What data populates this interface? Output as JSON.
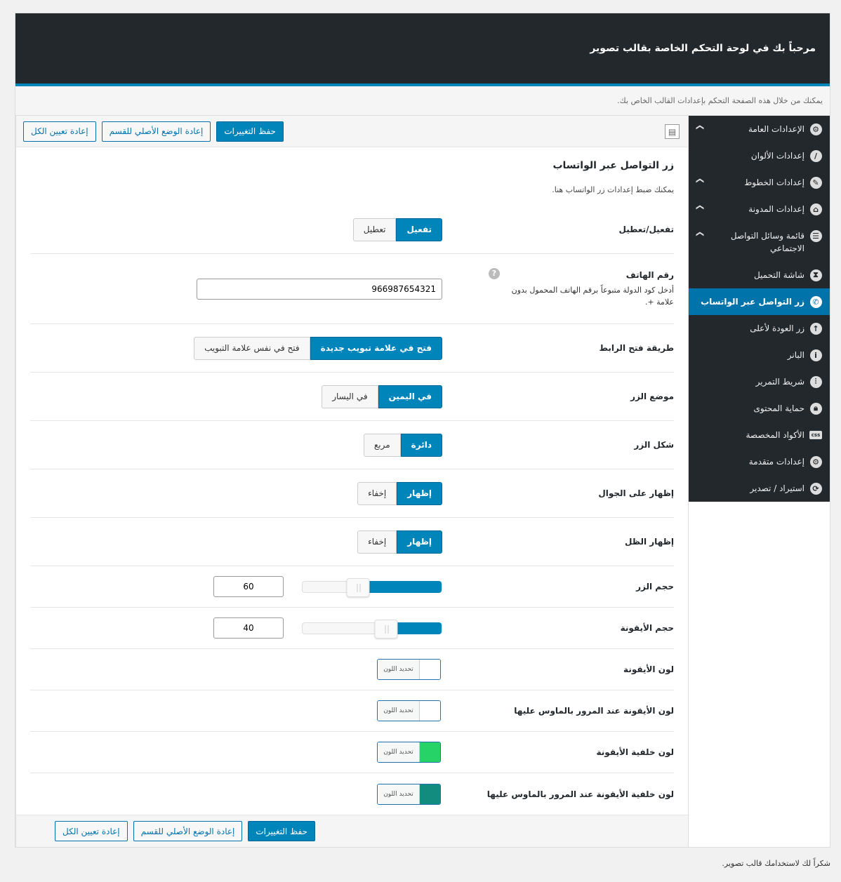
{
  "header": {
    "title": "مرحباً بك في لوحة التحكم الخاصة بقالب تصوير"
  },
  "subheader": {
    "text": "يمكنك من خلال هذه الصفحة التحكم بإعدادات القالب الخاص بك."
  },
  "sidebar": {
    "items": [
      {
        "label": "الإعدادات العامة",
        "icon": "gear-icon",
        "glyph": "⚙",
        "chevron": true
      },
      {
        "label": "إعدادات الألوان",
        "icon": "brush-icon",
        "glyph": "/",
        "chevron": false
      },
      {
        "label": "إعدادات الخطوط",
        "icon": "pencil-icon",
        "glyph": "✎",
        "chevron": true
      },
      {
        "label": "إعدادات المدونة",
        "icon": "home-icon",
        "glyph": "⌂",
        "chevron": true
      },
      {
        "label": "قائمة وسائل التواصل الاجتماعي",
        "icon": "list-icon",
        "glyph": "☰",
        "chevron": true
      },
      {
        "label": "شاشة التحميل",
        "icon": "hourglass-icon",
        "glyph": "⧗",
        "chevron": false
      },
      {
        "label": "زر التواصل عبر الواتساب",
        "icon": "phone-icon",
        "glyph": "✆",
        "chevron": false,
        "active": true
      },
      {
        "label": "زر العودة لأعلى",
        "icon": "arrow-up-icon",
        "glyph": "↑",
        "chevron": false
      },
      {
        "label": "البانر",
        "icon": "info-icon",
        "glyph": "i",
        "chevron": false
      },
      {
        "label": "شريط التمرير",
        "icon": "sliders-icon",
        "glyph": "⫶",
        "chevron": false
      },
      {
        "label": "حماية المحتوى",
        "icon": "lock-icon",
        "glyph": "🔒︎",
        "chevron": false
      },
      {
        "label": "الأكواد المخصصة",
        "icon": "css-icon",
        "glyph": "css",
        "chevron": false
      },
      {
        "label": "إعدادات متقدمة",
        "icon": "gears-icon",
        "glyph": "⚙",
        "chevron": false
      },
      {
        "label": "استيراد / تصدير",
        "icon": "refresh-icon",
        "glyph": "⟳",
        "chevron": false
      }
    ]
  },
  "toolbar": {
    "save": "حفظ التغييرات",
    "reset_section": "إعادة الوضع الأصلي للقسم",
    "reset_all": "إعادة تعيين الكل"
  },
  "section": {
    "title": "زر التواصل عبر الواتساب",
    "desc": "يمكنك ضبط إعدادات زر الواتساب هنا."
  },
  "fields": {
    "enable": {
      "label": "تفعيل/تعطيل",
      "options": [
        "تفعيل",
        "تعطيل"
      ],
      "selected": 0
    },
    "phone": {
      "label": "رقم الهاتف",
      "help": "أدخل كود الدولة متبوعاً برقم الهاتف المحمول بدون علامة +.",
      "value": "966987654321"
    },
    "link_mode": {
      "label": "طريقة فتح الرابط",
      "options": [
        "فتح في علامة تبويب جديدة",
        "فتح في نفس علامة التبويب"
      ],
      "selected": 0
    },
    "position": {
      "label": "موضع الزر",
      "options": [
        "في اليمين",
        "في اليسار"
      ],
      "selected": 0
    },
    "shape": {
      "label": "شكل الزر",
      "options": [
        "دائرة",
        "مربع"
      ],
      "selected": 0
    },
    "mobile": {
      "label": "إظهار على الجوال",
      "options": [
        "إظهار",
        "إخفاء"
      ],
      "selected": 0
    },
    "shadow": {
      "label": "إظهار الظل",
      "options": [
        "إظهار",
        "إخفاء"
      ],
      "selected": 0
    },
    "button_size": {
      "label": "حجم الزر",
      "value": "60",
      "min": 0,
      "max": 100
    },
    "icon_size": {
      "label": "حجم الأيقونة",
      "value": "40",
      "min": 0,
      "max": 100
    },
    "colors": [
      {
        "label": "لون الأيقونة",
        "button": "تحديد اللون",
        "color": "#ffffff"
      },
      {
        "label": "لون الأيقونة عند المرور بالماوس عليها",
        "button": "تحديد اللون",
        "color": "#ffffff"
      },
      {
        "label": "لون خلفية الأيقونة",
        "button": "تحديد اللون",
        "color": "#25d366"
      },
      {
        "label": "لون خلفية الأيقونة عند المرور بالماوس عليها",
        "button": "تحديد اللون",
        "color": "#128c7e"
      }
    ]
  },
  "footer": {
    "text": "شكراً لك لاستخدامك قالب تصوير."
  },
  "colors": {
    "accent": "#0085ba",
    "dark": "#23282d"
  }
}
